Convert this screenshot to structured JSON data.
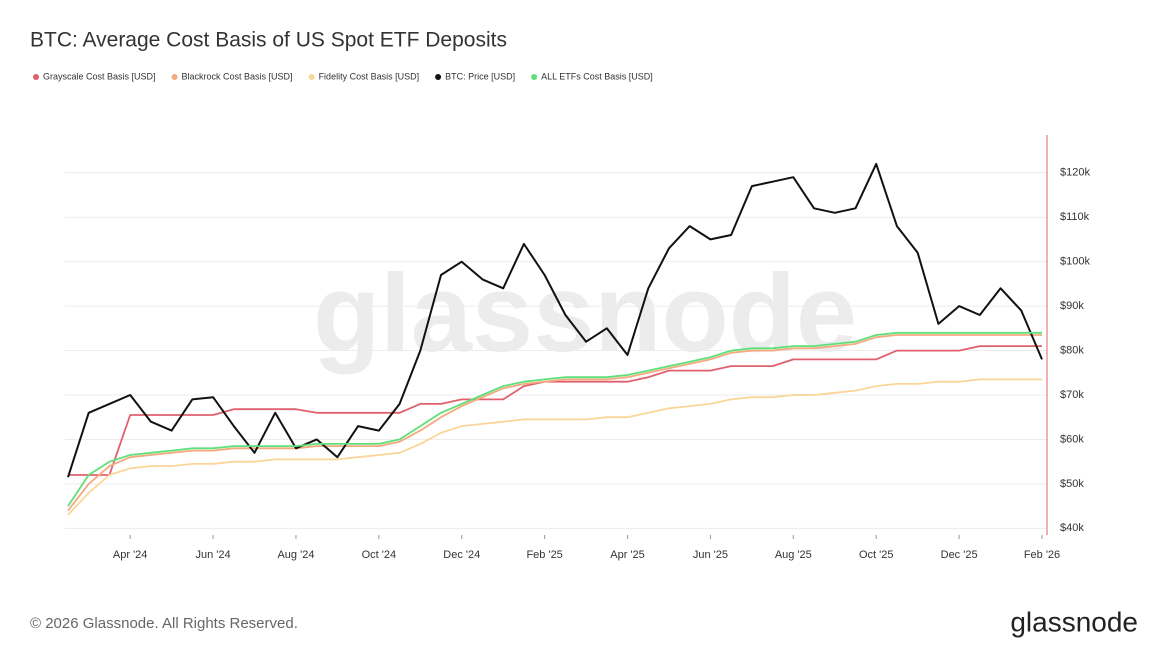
{
  "chart_data": {
    "type": "line",
    "title": "BTC: Average Cost Basis of US Spot ETF Deposits",
    "watermark": "glassnode",
    "footer": "© 2026 Glassnode. All Rights Reserved.",
    "brand": "glassnode",
    "categories": [
      null,
      null,
      null,
      "Apr '24",
      null,
      null,
      null,
      "Jun '24",
      null,
      null,
      null,
      "Aug '24",
      null,
      null,
      null,
      "Oct '24",
      null,
      null,
      null,
      "Dec '24",
      null,
      null,
      null,
      "Feb '25",
      null,
      null,
      null,
      "Apr '25",
      null,
      null,
      null,
      "Jun '25",
      null,
      null,
      null,
      "Aug '25",
      null,
      null,
      null,
      "Oct '25",
      null,
      null,
      null,
      "Dec '25",
      null,
      null,
      null,
      "Feb '26"
    ],
    "series": [
      {
        "name": "Grayscale Cost Basis [USD]",
        "color": "#e0606e",
        "values": [
          52000,
          52000,
          52000,
          65500,
          65500,
          65500,
          65500,
          65500,
          66800,
          66800,
          66800,
          66800,
          66000,
          66000,
          66000,
          66000,
          66000,
          68000,
          68000,
          69000,
          69000,
          69000,
          72000,
          73000,
          73000,
          73000,
          73000,
          73000,
          74000,
          75500,
          75500,
          75500,
          76500,
          76500,
          76500,
          78000,
          78000,
          78000,
          78000,
          78000,
          80000,
          80000,
          80000,
          80000,
          81000,
          81000,
          81000,
          81000
        ]
      },
      {
        "name": "Blackrock Cost Basis [USD]",
        "color": "#f4a97f",
        "values": [
          44000,
          50000,
          54000,
          56000,
          56500,
          57000,
          57500,
          57500,
          58000,
          58000,
          58000,
          58000,
          58500,
          58500,
          58500,
          58500,
          59500,
          62000,
          65000,
          67500,
          69500,
          71500,
          72500,
          73000,
          73500,
          73500,
          73500,
          74000,
          75000,
          76000,
          77000,
          78000,
          79500,
          80000,
          80000,
          80500,
          80500,
          81000,
          81500,
          83000,
          83500,
          83500,
          83500,
          83500,
          83500,
          83500,
          83500,
          83500
        ]
      },
      {
        "name": "Fidelity Cost Basis [USD]",
        "color": "#fbd59a",
        "values": [
          43000,
          48000,
          52000,
          53500,
          54000,
          54000,
          54500,
          54500,
          55000,
          55000,
          55500,
          55500,
          55500,
          55500,
          56000,
          56500,
          57000,
          59000,
          61500,
          63000,
          63500,
          64000,
          64500,
          64500,
          64500,
          64500,
          65000,
          65000,
          66000,
          67000,
          67500,
          68000,
          69000,
          69500,
          69500,
          70000,
          70000,
          70500,
          71000,
          72000,
          72500,
          72500,
          73000,
          73000,
          73500,
          73500,
          73500,
          73500
        ]
      },
      {
        "name": "BTC: Price [USD]",
        "color": "#111111",
        "values": [
          51500,
          66000,
          68000,
          70000,
          64000,
          62000,
          69000,
          69500,
          63000,
          57000,
          66000,
          58000,
          60000,
          56000,
          63000,
          62000,
          68000,
          80000,
          97000,
          100000,
          96000,
          94000,
          104000,
          97000,
          88000,
          82000,
          85000,
          79000,
          94000,
          103000,
          108000,
          105000,
          106000,
          117000,
          118000,
          119000,
          112000,
          111000,
          112000,
          122000,
          108000,
          102000,
          86000,
          90000,
          88000,
          94000,
          89000,
          78000
        ]
      },
      {
        "name": "ALL ETFs Cost Basis [USD]",
        "color": "#5ee07a",
        "values": [
          45000,
          52000,
          55000,
          56500,
          57000,
          57500,
          58000,
          58000,
          58500,
          58500,
          58500,
          58500,
          59000,
          59000,
          59000,
          59000,
          60000,
          63000,
          66000,
          68000,
          70000,
          72000,
          73000,
          73500,
          74000,
          74000,
          74000,
          74500,
          75500,
          76500,
          77500,
          78500,
          80000,
          80500,
          80500,
          81000,
          81000,
          81500,
          82000,
          83500,
          84000,
          84000,
          84000,
          84000,
          84000,
          84000,
          84000,
          84000
        ]
      }
    ],
    "ylim": [
      38500,
      128500
    ],
    "yticks": [
      {
        "value": 40000,
        "label": "$40k"
      },
      {
        "value": 50000,
        "label": "$50k"
      },
      {
        "value": 60000,
        "label": "$60k"
      },
      {
        "value": 70000,
        "label": "$70k"
      },
      {
        "value": 80000,
        "label": "$80k"
      },
      {
        "value": 90000,
        "label": "$90k"
      },
      {
        "value": 100000,
        "label": "$100k"
      },
      {
        "value": 110000,
        "label": "$110k"
      },
      {
        "value": 120000,
        "label": "$120k"
      }
    ],
    "grid": true,
    "axis_color": "#e0606e"
  }
}
